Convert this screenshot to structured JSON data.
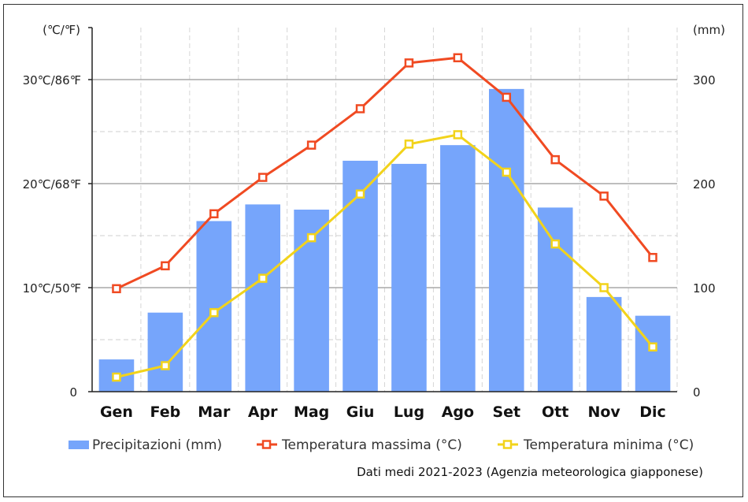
{
  "chart_data": {
    "type": "bar",
    "categories": [
      "Gen",
      "Feb",
      "Mar",
      "Apr",
      "Mag",
      "Giu",
      "Lug",
      "Ago",
      "Set",
      "Ott",
      "Nov",
      "Dic"
    ],
    "series": [
      {
        "name": "Precipitazioni (mm)",
        "type": "bar",
        "axis": "right",
        "color": "#76a5fb",
        "values": [
          31,
          76,
          164,
          180,
          175,
          222,
          219,
          237,
          291,
          177,
          91,
          73
        ]
      },
      {
        "name": "Temperatura massima (°C)",
        "type": "line",
        "axis": "left",
        "color": "#f04a22",
        "values": [
          9.9,
          12.1,
          17.1,
          20.6,
          23.7,
          27.2,
          31.6,
          32.1,
          28.3,
          22.3,
          18.8,
          12.9
        ]
      },
      {
        "name": "Temperatura minima (°C)",
        "type": "line",
        "axis": "left",
        "color": "#f2d31b",
        "values": [
          1.4,
          2.5,
          7.6,
          10.9,
          14.8,
          19.0,
          23.8,
          24.7,
          21.1,
          14.2,
          10.0,
          4.3
        ]
      }
    ],
    "y_left": {
      "unit_label": "(℃/℉)",
      "ticks": [
        {
          "value": 0,
          "label": "0"
        },
        {
          "value": 10,
          "label": "10℃/50℉"
        },
        {
          "value": 20,
          "label": "20℃/68℉"
        },
        {
          "value": 30,
          "label": "30℃/86℉"
        }
      ],
      "ylim": [
        0,
        35
      ]
    },
    "y_right": {
      "unit_label": "(mm)",
      "ticks": [
        {
          "value": 0,
          "label": "0"
        },
        {
          "value": 100,
          "label": "100"
        },
        {
          "value": 200,
          "label": "200"
        },
        {
          "value": 300,
          "label": "300"
        }
      ],
      "ylim": [
        0,
        350
      ]
    },
    "grid": true,
    "legend_position": "bottom",
    "note": "Dati medi 2021-2023 (Agenzia meteorologica giapponese)"
  }
}
